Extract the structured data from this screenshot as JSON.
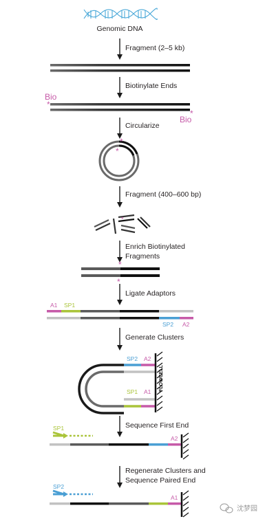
{
  "colors": {
    "black": "#1a1a1a",
    "dark_gray": "#5a5a5a",
    "mid_gray": "#7a7a7a",
    "light_gray": "#c2c2c2",
    "magenta": "#c65aa8",
    "lime": "#aac43a",
    "blue": "#4a9fd4",
    "dna_blue": "#4aa8d8"
  },
  "title": {
    "label": "Genomic DNA",
    "icon": "dna-helix-icon"
  },
  "steps": [
    {
      "label": "Fragment (2–5 kb)"
    },
    {
      "label": "Biotinylate Ends"
    },
    {
      "label": "Circularize"
    },
    {
      "label": "Fragment (400–600 bp)"
    },
    {
      "label_line1": "Enrich Biotinylated",
      "label_line2": "Fragments"
    },
    {
      "label": "Ligate Adaptors"
    },
    {
      "label": "Generate Clusters"
    },
    {
      "label": "Sequence First End"
    },
    {
      "label_line1": "Regenerate Clusters and",
      "label_line2": "Sequence Paired End"
    }
  ],
  "marks": {
    "bio": "Bio",
    "biotin_marker": "*",
    "a1": "A1",
    "a2": "A2",
    "sp1": "SP1",
    "sp2": "SP2",
    "flowcell": "FLOWCELL"
  },
  "watermark": {
    "text": "沈梦园",
    "icon": "wechat-icon"
  }
}
